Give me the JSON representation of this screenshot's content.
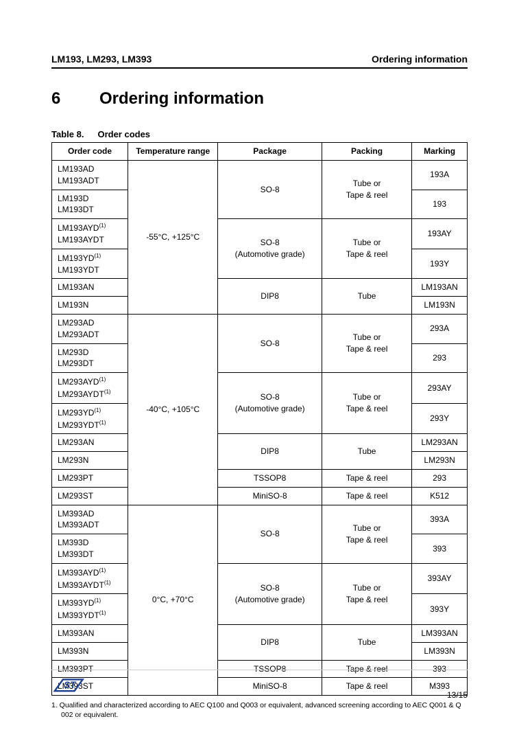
{
  "header": {
    "left": "LM193, LM293, LM393",
    "right": "Ordering information"
  },
  "section": {
    "number": "6",
    "title": "Ordering information"
  },
  "table": {
    "caption_num": "Table 8.",
    "caption_title": "Order codes",
    "headers": [
      "Order code",
      "Temperature range",
      "Package",
      "Packing",
      "Marking"
    ],
    "footnote": "1.   Qualified and characterized according to AEC Q100 and Q003 or equivalent, advanced screening according to AEC Q001 & Q 002 or equivalent.",
    "groups": [
      {
        "temp": "-55°C, +125°C",
        "rowspan": 6,
        "rows": [
          {
            "codes": [
              "LM193AD",
              "LM193ADT"
            ],
            "sup": [
              false,
              false
            ],
            "marking": "193A",
            "pkg_group": 0
          },
          {
            "codes": [
              "LM193D",
              "LM193DT"
            ],
            "sup": [
              false,
              false
            ],
            "marking": "193",
            "pkg_group": 0
          },
          {
            "codes": [
              "LM193AYD",
              "LM193AYDT"
            ],
            "sup": [
              true,
              false
            ],
            "marking": "193AY",
            "pkg_group": 1
          },
          {
            "codes": [
              "LM193YD",
              "LM193YDT"
            ],
            "sup": [
              true,
              false
            ],
            "marking": "193Y",
            "pkg_group": 1
          },
          {
            "codes": [
              "LM193AN"
            ],
            "sup": [
              false
            ],
            "marking": "LM193AN",
            "pkg_group": 2
          },
          {
            "codes": [
              "LM193N"
            ],
            "sup": [
              false
            ],
            "marking": "LM193N",
            "pkg_group": 2
          }
        ],
        "pkg_groups": [
          {
            "package": "SO-8",
            "packing": "Tube or\nTape & reel",
            "span": 2
          },
          {
            "package": "SO-8\n(Automotive grade)",
            "packing": "Tube or\nTape & reel",
            "span": 2
          },
          {
            "package": "DIP8",
            "packing": "Tube",
            "span": 2
          }
        ]
      },
      {
        "temp": "-40°C, +105°C",
        "rowspan": 8,
        "rows": [
          {
            "codes": [
              "LM293AD",
              "LM293ADT"
            ],
            "sup": [
              false,
              false
            ],
            "marking": "293A",
            "pkg_group": 0
          },
          {
            "codes": [
              "LM293D",
              "LM293DT"
            ],
            "sup": [
              false,
              false
            ],
            "marking": "293",
            "pkg_group": 0
          },
          {
            "codes": [
              "LM293AYD",
              "LM293AYDT"
            ],
            "sup": [
              true,
              true
            ],
            "marking": "293AY",
            "pkg_group": 1
          },
          {
            "codes": [
              "LM293YD",
              "LM293YDT"
            ],
            "sup": [
              true,
              true
            ],
            "marking": "293Y",
            "pkg_group": 1
          },
          {
            "codes": [
              "LM293AN"
            ],
            "sup": [
              false
            ],
            "marking": "LM293AN",
            "pkg_group": 2
          },
          {
            "codes": [
              "LM293N"
            ],
            "sup": [
              false
            ],
            "marking": "LM293N",
            "pkg_group": 2
          },
          {
            "codes": [
              "LM293PT"
            ],
            "sup": [
              false
            ],
            "marking": "293",
            "pkg_group": 3
          },
          {
            "codes": [
              "LM293ST"
            ],
            "sup": [
              false
            ],
            "marking": "K512",
            "pkg_group": 4
          }
        ],
        "pkg_groups": [
          {
            "package": "SO-8",
            "packing": "Tube or\nTape & reel",
            "span": 2
          },
          {
            "package": "SO-8\n(Automotive grade)",
            "packing": "Tube or\nTape & reel",
            "span": 2
          },
          {
            "package": "DIP8",
            "packing": "Tube",
            "span": 2
          },
          {
            "package": "TSSOP8",
            "packing": "Tape & reel",
            "span": 1
          },
          {
            "package": "MiniSO-8",
            "packing": "Tape & reel",
            "span": 1
          }
        ]
      },
      {
        "temp": "0°C, +70°C",
        "rowspan": 8,
        "rows": [
          {
            "codes": [
              "LM393AD",
              "LM393ADT"
            ],
            "sup": [
              false,
              false
            ],
            "marking": "393A",
            "pkg_group": 0
          },
          {
            "codes": [
              "LM393D",
              "LM393DT"
            ],
            "sup": [
              false,
              false
            ],
            "marking": "393",
            "pkg_group": 0
          },
          {
            "codes": [
              "LM393AYD",
              "LM393AYDT"
            ],
            "sup": [
              true,
              true
            ],
            "marking": "393AY",
            "pkg_group": 1
          },
          {
            "codes": [
              "LM393YD",
              "LM393YDT"
            ],
            "sup": [
              true,
              true
            ],
            "marking": "393Y",
            "pkg_group": 1
          },
          {
            "codes": [
              "LM393AN"
            ],
            "sup": [
              false
            ],
            "marking": "LM393AN",
            "pkg_group": 2
          },
          {
            "codes": [
              "LM393N"
            ],
            "sup": [
              false
            ],
            "marking": "LM393N",
            "pkg_group": 2
          },
          {
            "codes": [
              "LM393PT"
            ],
            "sup": [
              false
            ],
            "marking": "393",
            "pkg_group": 3
          },
          {
            "codes": [
              "LM393ST"
            ],
            "sup": [
              false
            ],
            "marking": "M393",
            "pkg_group": 4
          }
        ],
        "pkg_groups": [
          {
            "package": "SO-8",
            "packing": "Tube or\nTape & reel",
            "span": 2
          },
          {
            "package": "SO-8\n(Automotive grade)",
            "packing": "Tube or\nTape & reel",
            "span": 2
          },
          {
            "package": "DIP8",
            "packing": "Tube",
            "span": 2
          },
          {
            "package": "TSSOP8",
            "packing": "Tape & reel",
            "span": 1
          },
          {
            "package": "MiniSO-8",
            "packing": "Tape & reel",
            "span": 1
          }
        ]
      }
    ]
  },
  "footer": {
    "page": "13/15"
  },
  "style": {
    "border_color": "#000000",
    "font_body": 12,
    "font_header": 14,
    "font_section": 24
  }
}
